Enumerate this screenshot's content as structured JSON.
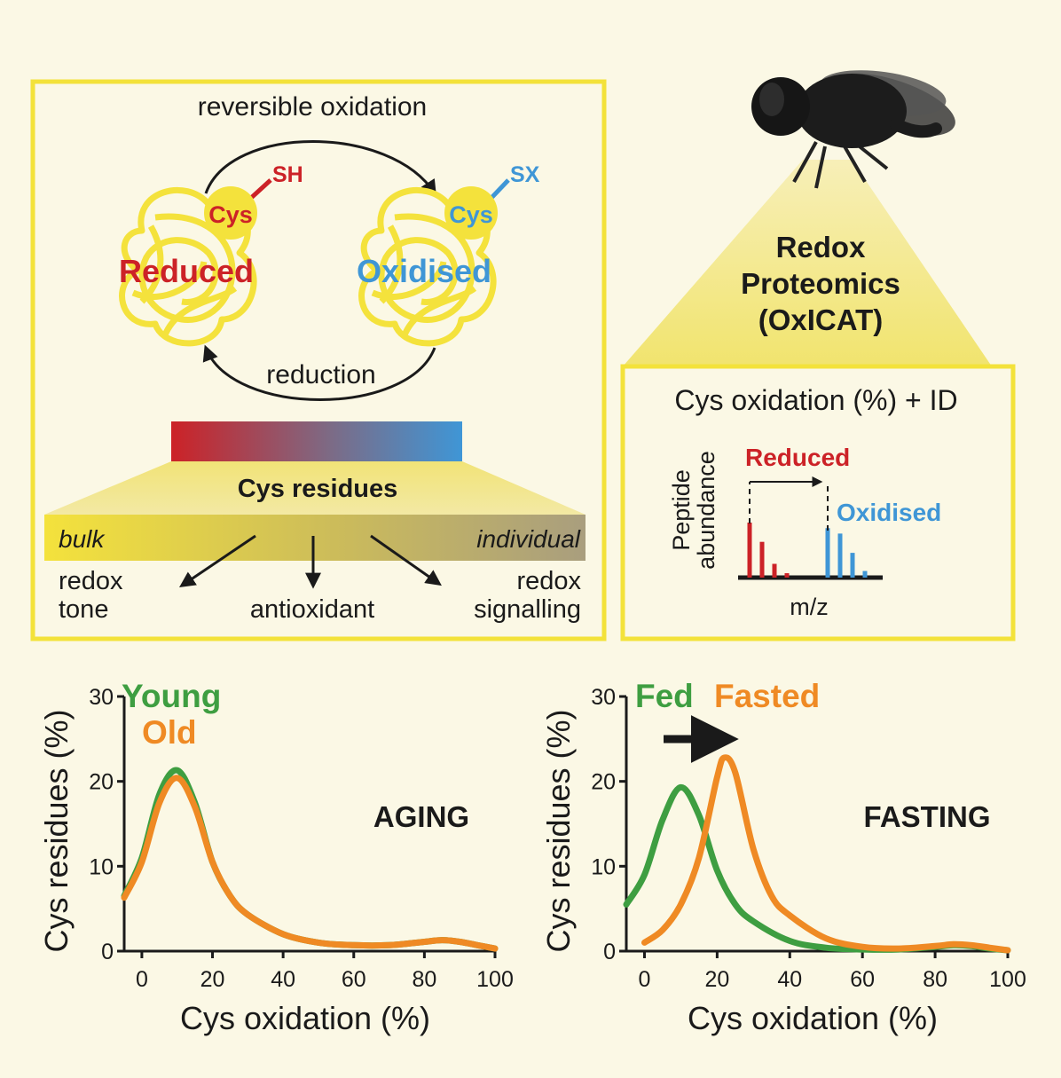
{
  "colors": {
    "background": "#fbf8e5",
    "frame": "#f3e23a",
    "reduced": "#cc2227",
    "oxidised": "#3f96d6",
    "young": "#3e9e41",
    "old": "#ef8a24",
    "fed": "#3e9e41",
    "fasted": "#ef8a24",
    "protein": "#f4e23c",
    "text": "#1a1a1a"
  },
  "cycle_panel": {
    "top_arrow_label": "reversible oxidation",
    "bottom_arrow_label": "reduction",
    "reduced_thiol": "SH",
    "reduced_cys": "Cys",
    "reduced_label": "Reduced",
    "oxidised_group": "SX",
    "oxidised_cys": "Cys",
    "oxidised_label": "Oxidised",
    "gradient_title": "Cys residues",
    "bulk_label": "bulk",
    "individual_label": "individual",
    "outcomes": [
      {
        "line1": "redox",
        "line2": "tone"
      },
      {
        "line1": "",
        "line2": "antioxidant"
      },
      {
        "line1": "redox",
        "line2": "signalling"
      }
    ]
  },
  "proteomics_panel": {
    "fly_icon": "fruit-fly-icon",
    "title_lines": [
      "Redox",
      "Proteomics",
      "(OxICAT)"
    ],
    "box_title": "Cys oxidation (%) + ID",
    "spectrum": {
      "ylabel_lines": [
        "Peptide",
        "abundance"
      ],
      "xlabel": "m/z",
      "reduced_label": "Reduced",
      "oxidised_label": "Oxidised",
      "reduced_peaks": [
        1.0,
        0.65,
        0.25,
        0.08
      ],
      "oxidised_peaks": [
        0.9,
        0.8,
        0.45,
        0.12
      ]
    }
  },
  "chart_data": [
    {
      "type": "line",
      "title": "AGING",
      "xlabel": "Cys oxidation (%)",
      "ylabel": "Cys residues (%)",
      "xlim": [
        -5,
        100
      ],
      "ylim": [
        0,
        30
      ],
      "xticks": [
        0,
        20,
        40,
        60,
        80,
        100
      ],
      "yticks": [
        0,
        10,
        20,
        30
      ],
      "grid": false,
      "legend": "top-left",
      "series": [
        {
          "name": "Young",
          "color": "#3e9e41",
          "x": [
            -5,
            0,
            5,
            10,
            15,
            20,
            25,
            30,
            40,
            50,
            60,
            70,
            80,
            85,
            90,
            95,
            100
          ],
          "y": [
            6.5,
            11,
            18.5,
            21.3,
            17.5,
            10.5,
            6.5,
            4.3,
            2.0,
            1.0,
            0.7,
            0.7,
            1.1,
            1.3,
            1.1,
            0.7,
            0.3
          ]
        },
        {
          "name": "Old",
          "color": "#ef8a24",
          "x": [
            -5,
            0,
            5,
            10,
            15,
            20,
            25,
            30,
            40,
            50,
            60,
            70,
            80,
            85,
            90,
            95,
            100
          ],
          "y": [
            6.3,
            10.5,
            17.5,
            20.4,
            17,
            10.5,
            6.5,
            4.3,
            2.0,
            1.0,
            0.7,
            0.7,
            1.1,
            1.3,
            1.1,
            0.7,
            0.3
          ]
        }
      ]
    },
    {
      "type": "line",
      "title": "FASTING",
      "xlabel": "Cys oxidation (%)",
      "ylabel": "Cys residues (%)",
      "xlim": [
        -5,
        100
      ],
      "ylim": [
        0,
        30
      ],
      "xticks": [
        0,
        20,
        40,
        60,
        80,
        100
      ],
      "yticks": [
        0,
        10,
        20,
        30
      ],
      "grid": false,
      "legend": "top-left",
      "series": [
        {
          "name": "Fed",
          "color": "#3e9e41",
          "x": [
            -5,
            0,
            5,
            10,
            15,
            20,
            25,
            30,
            40,
            50,
            60,
            70,
            80,
            85,
            90,
            95,
            100
          ],
          "y": [
            5.5,
            9,
            15.5,
            19.3,
            16,
            9.5,
            5.5,
            3.5,
            1.2,
            0.4,
            0.2,
            0.2,
            0.5,
            0.7,
            0.6,
            0.3,
            0.1
          ]
        },
        {
          "name": "Fasted",
          "color": "#ef8a24",
          "x": [
            0,
            5,
            10,
            15,
            20,
            22,
            25,
            30,
            35,
            40,
            50,
            60,
            70,
            80,
            85,
            90,
            95,
            100
          ],
          "y": [
            1.0,
            2.5,
            5.5,
            11,
            20.5,
            22.8,
            21,
            12,
            6.5,
            4.2,
            1.5,
            0.5,
            0.3,
            0.6,
            0.8,
            0.7,
            0.4,
            0.1
          ]
        }
      ]
    }
  ]
}
